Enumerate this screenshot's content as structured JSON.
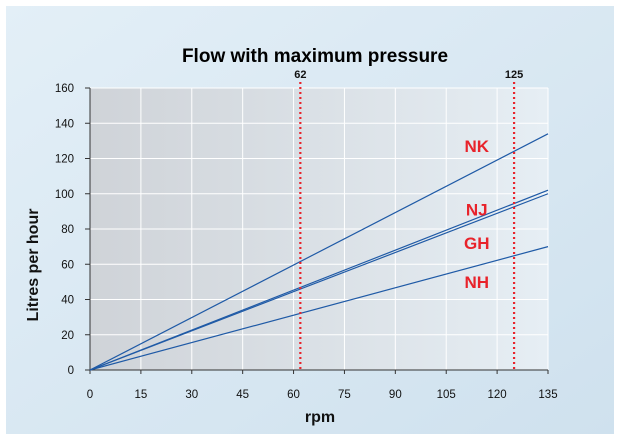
{
  "chart_data": {
    "type": "line",
    "title": "Flow with maximum pressure",
    "xlabel": "rpm",
    "ylabel": "Litres per hour",
    "xlim": [
      0,
      135
    ],
    "ylim": [
      0,
      160
    ],
    "x_ticks": [
      0,
      15,
      30,
      45,
      60,
      75,
      90,
      105,
      120,
      135
    ],
    "y_ticks": [
      0,
      20,
      40,
      60,
      80,
      100,
      120,
      140,
      160
    ],
    "grid": true,
    "markers": [
      {
        "x": 62,
        "label": "62"
      },
      {
        "x": 125,
        "label": "125"
      }
    ],
    "series": [
      {
        "name": "NK",
        "x": [
          0,
          135
        ],
        "y": [
          0,
          134
        ]
      },
      {
        "name": "NJ",
        "x": [
          0,
          135
        ],
        "y": [
          0,
          102
        ]
      },
      {
        "name": "GH",
        "x": [
          0,
          135
        ],
        "y": [
          0,
          100
        ]
      },
      {
        "name": "NH",
        "x": [
          0,
          135
        ],
        "y": [
          0,
          70
        ]
      }
    ]
  },
  "colors": {
    "series_line": "#1f5aa6",
    "series_label": "#e8232b",
    "marker_line": "#e8232b",
    "panel_bg": "#dbe9f3",
    "plot_bg_left": "#cfd3d8",
    "plot_bg_right": "#e6eef4",
    "grid": "#ffffff",
    "axis": "#333333"
  }
}
